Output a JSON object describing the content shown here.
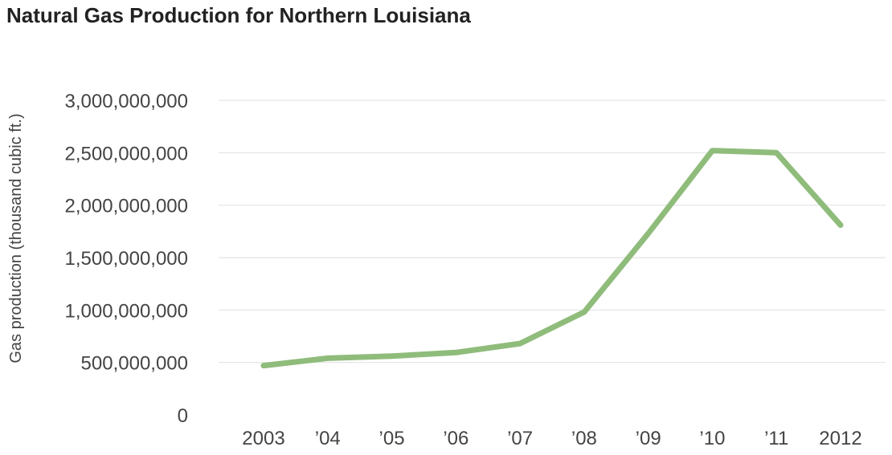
{
  "title": "Natural Gas Production for Northern Louisiana",
  "chart_data": {
    "type": "line",
    "title": "Natural Gas Production for Northern Louisiana",
    "xlabel": "",
    "ylabel": "Gas production (thousand cubic ft.)",
    "x": [
      2003,
      2004,
      2005,
      2006,
      2007,
      2008,
      2009,
      2010,
      2011,
      2012
    ],
    "x_tick_labels": [
      "2003",
      "’04",
      "’05",
      "’06",
      "’07",
      "’08",
      "’09",
      "’10",
      "’11",
      "2012"
    ],
    "y_ticks": [
      0,
      500000000,
      1000000000,
      1500000000,
      2000000000,
      2500000000,
      3000000000
    ],
    "y_tick_labels": [
      "0",
      "500,000,000",
      "1,000,000,000",
      "1,500,000,000",
      "2,000,000,000",
      "2,500,000,000",
      "3,000,000,000"
    ],
    "ylim": [
      0,
      3000000000
    ],
    "grid": true,
    "series": [
      {
        "values": [
          470000000,
          540000000,
          560000000,
          595000000,
          680000000,
          980000000,
          1730000000,
          2520000000,
          2500000000,
          1810000000
        ],
        "color": "#8fbc7b"
      }
    ]
  }
}
